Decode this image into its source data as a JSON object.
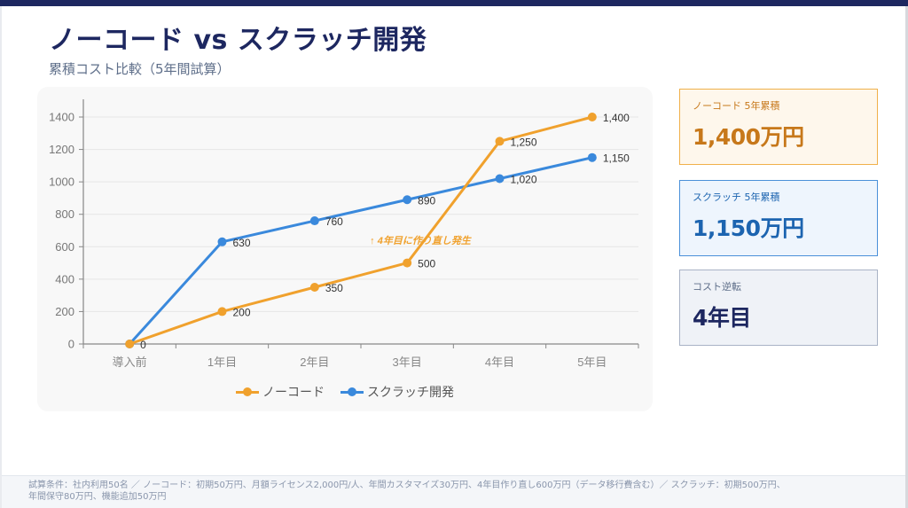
{
  "header": {
    "title": "ノーコード vs スクラッチ開発",
    "subtitle": "累積コスト比較（5年間試算）"
  },
  "colors": {
    "nocode": "#f0a12d",
    "scratch": "#3a89dc",
    "navy": "#1d2760"
  },
  "chart_data": {
    "type": "line",
    "title": "",
    "xlabel": "",
    "ylabel": "",
    "categories": [
      "導入前",
      "1年目",
      "2年目",
      "3年目",
      "4年目",
      "5年目"
    ],
    "series": [
      {
        "name": "ノーコード",
        "color": "#f0a12d",
        "values": [
          0,
          200,
          350,
          500,
          1250,
          1400
        ],
        "labels": [
          "0",
          "200",
          "350",
          "500",
          "1,250",
          "1,400"
        ]
      },
      {
        "name": "スクラッチ開発",
        "color": "#3a89dc",
        "values": [
          0,
          630,
          760,
          890,
          1020,
          1150
        ],
        "labels": [
          "",
          "630",
          "760",
          "890",
          "1,020",
          "1,150"
        ]
      }
    ],
    "ylim": [
      0,
      1400
    ],
    "yticks": [
      0,
      200,
      400,
      600,
      800,
      1000,
      1200,
      1400
    ],
    "grid": true,
    "legend_position": "bottom-center",
    "annotation": {
      "text": "↑ 4年目に作り直し発生",
      "x_category": "3年目",
      "y_value": 640
    }
  },
  "kpis": [
    {
      "label": "ノーコード 5年累積",
      "value": "1,400万円"
    },
    {
      "label": "スクラッチ 5年累積",
      "value": "1,150万円"
    },
    {
      "label": "コスト逆転",
      "value": "4年目"
    }
  ],
  "footer": {
    "line1": "試算条件：社内利用50名 ／ ノーコード：初期50万円、月額ライセンス2,000円/人、年間カスタマイズ30万円、4年目作り直し600万円（データ移行費含む）／ スクラッチ：初期500万円、",
    "line2": "年間保守80万円、機能追加50万円"
  }
}
